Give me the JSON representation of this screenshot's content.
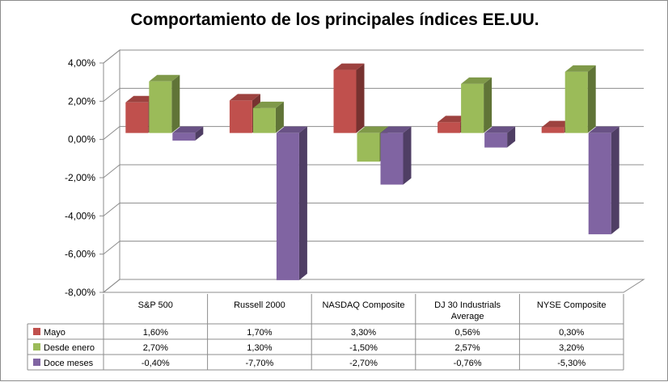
{
  "chart_data": {
    "type": "bar",
    "title": "Comportamiento de los principales índices EE.UU.",
    "categories": [
      "S&P 500",
      "Russell 2000",
      "NASDAQ Composite",
      "DJ 30 Industrials Average",
      "NYSE Composite"
    ],
    "series": [
      {
        "name": "Mayo",
        "color": "#c0504d",
        "values": [
          1.6,
          1.7,
          3.3,
          0.56,
          0.3
        ],
        "labels": [
          "1,60%",
          "1,70%",
          "3,30%",
          "0,56%",
          "0,30%"
        ]
      },
      {
        "name": "Desde enero",
        "color": "#9bbb59",
        "values": [
          2.7,
          1.3,
          -1.5,
          2.57,
          3.2
        ],
        "labels": [
          "2,70%",
          "1,30%",
          "-1,50%",
          "2,57%",
          "3,20%"
        ]
      },
      {
        "name": "Doce meses",
        "color": "#8064a2",
        "values": [
          -0.4,
          -7.7,
          -2.7,
          -0.76,
          -5.3
        ],
        "labels": [
          "-0,40%",
          "-7,70%",
          "-2,70%",
          "-0,76%",
          "-5,30%"
        ]
      }
    ],
    "ylim": [
      -8,
      4
    ],
    "yticks": [
      4,
      2,
      0,
      -2,
      -4,
      -6,
      -8
    ],
    "ytick_labels": [
      "4,00%",
      "2,00%",
      "0,00%",
      "-2,00%",
      "-4,00%",
      "-6,00%",
      "-8,00%"
    ],
    "grid": true,
    "legend": "data-table",
    "style": "3d-clustered-column"
  }
}
